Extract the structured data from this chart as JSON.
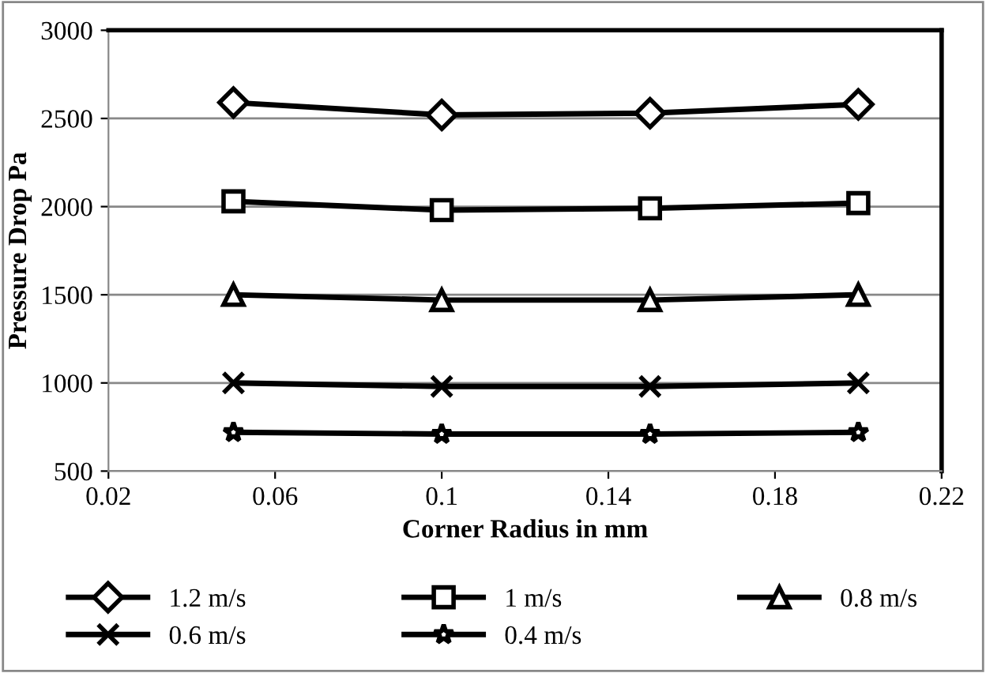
{
  "chart_data": {
    "type": "line",
    "xlabel": "Corner Radius in mm",
    "ylabel": "Pressure Drop Pa",
    "x": [
      0.05,
      0.1,
      0.15,
      0.2
    ],
    "series": [
      {
        "name": "1.2 m/s",
        "color": "#000000",
        "marker": "diamond",
        "values": [
          2590,
          2520,
          2530,
          2580
        ]
      },
      {
        "name": "1 m/s",
        "color": "#000000",
        "marker": "square",
        "values": [
          2030,
          1980,
          1990,
          2020
        ]
      },
      {
        "name": "0.8 m/s",
        "color": "#000000",
        "marker": "triangle",
        "values": [
          1500,
          1470,
          1470,
          1500
        ]
      },
      {
        "name": "0.6 m/s",
        "color": "#000000",
        "marker": "cross",
        "values": [
          1000,
          980,
          980,
          1000
        ]
      },
      {
        "name": "0.4 m/s",
        "color": "#000000",
        "marker": "star",
        "values": [
          720,
          710,
          710,
          720
        ]
      }
    ],
    "xlim": [
      0.02,
      0.22
    ],
    "xticks": [
      0.02,
      0.06,
      0.1,
      0.14,
      0.18,
      0.22
    ],
    "ylim": [
      500,
      3000
    ],
    "yticks": [
      500,
      1000,
      1500,
      2000,
      2500,
      3000
    ],
    "grid": "y",
    "legend": "bottom",
    "line_style": "solid"
  }
}
